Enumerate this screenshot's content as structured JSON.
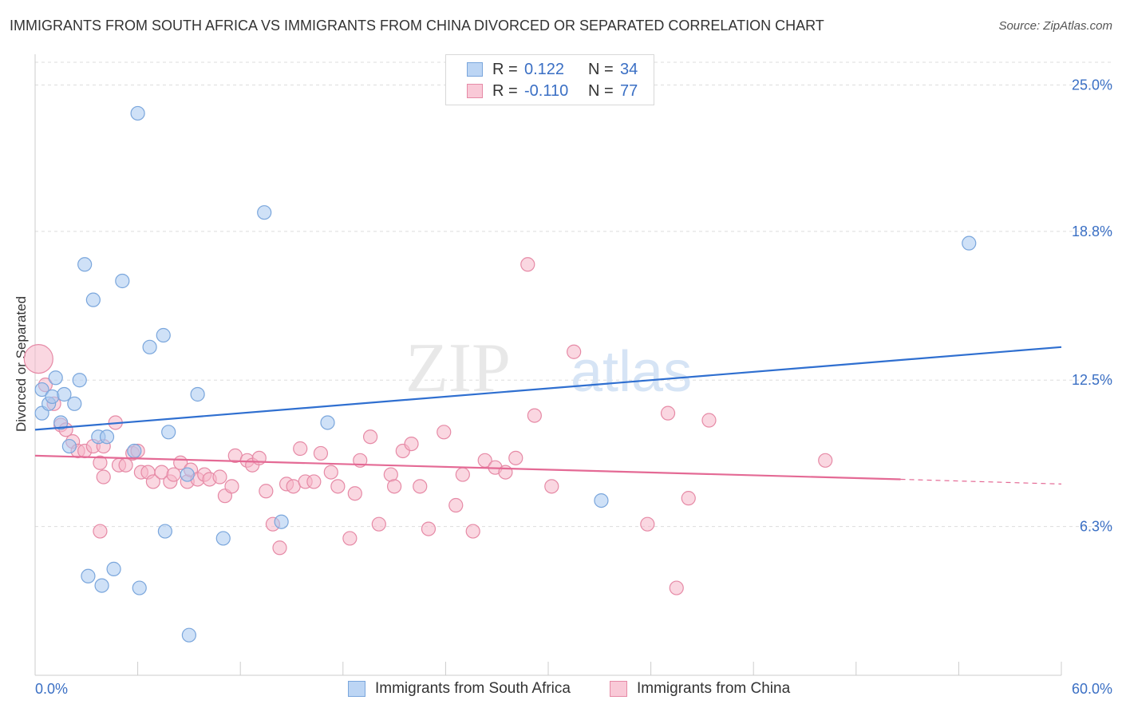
{
  "title": "IMMIGRANTS FROM SOUTH AFRICA VS IMMIGRANTS FROM CHINA DIVORCED OR SEPARATED CORRELATION CHART",
  "source": "Source: ZipAtlas.com",
  "watermark": {
    "zip": "ZIP",
    "atlas": "atlas"
  },
  "legend": {
    "rows": [
      {
        "r_label": "R =",
        "r_value": "0.122",
        "n_label": "N =",
        "n_value": "34"
      },
      {
        "r_label": "R =",
        "r_value": "-0.110",
        "n_label": "N =",
        "n_value": "77"
      }
    ]
  },
  "bottom_legend": {
    "south_africa": "Immigrants from South Africa",
    "china": "Immigrants from China"
  },
  "colors": {
    "blue_fill": "#a8c8f0",
    "blue_stroke": "#7aa6dc",
    "blue_line": "#2f6fd0",
    "pink_fill": "#f6b6c9",
    "pink_stroke": "#e68aa6",
    "pink_line": "#e46a95",
    "tick_label": "#3a6fc4",
    "grid": "#dddddd"
  },
  "chart_data": {
    "type": "scatter",
    "title": "IMMIGRANTS FROM SOUTH AFRICA VS IMMIGRANTS FROM CHINA DIVORCED OR SEPARATED CORRELATION CHART",
    "xlabel": "",
    "ylabel": "Divorced or Separated",
    "xlim": [
      0,
      60
    ],
    "ylim": [
      0,
      26.3
    ],
    "x_tick_labels": [
      "0.0%",
      "60.0%"
    ],
    "y_ticks": [
      6.3,
      12.5,
      18.8,
      25.0
    ],
    "y_tick_labels": [
      "6.3%",
      "12.5%",
      "18.8%",
      "25.0%"
    ],
    "grid": true,
    "legend_position": "top-center",
    "series": [
      {
        "name": "Immigrants from South Africa",
        "color": "#a8c8f0",
        "points": [
          [
            0.4,
            12.1
          ],
          [
            0.4,
            11.1
          ],
          [
            0.8,
            11.5
          ],
          [
            1.0,
            11.8
          ],
          [
            1.2,
            12.6
          ],
          [
            1.5,
            10.7
          ],
          [
            1.7,
            11.9
          ],
          [
            2.0,
            9.7
          ],
          [
            2.3,
            11.5
          ],
          [
            2.6,
            12.5
          ],
          [
            2.9,
            17.4
          ],
          [
            3.4,
            15.9
          ],
          [
            3.7,
            10.1
          ],
          [
            4.2,
            10.1
          ],
          [
            5.1,
            16.7
          ],
          [
            5.8,
            9.5
          ],
          [
            6.0,
            23.8
          ],
          [
            6.7,
            13.9
          ],
          [
            7.5,
            14.4
          ],
          [
            7.6,
            6.1
          ],
          [
            7.8,
            10.3
          ],
          [
            8.9,
            8.5
          ],
          [
            9.0,
            1.7
          ],
          [
            9.5,
            11.9
          ],
          [
            11.0,
            5.8
          ],
          [
            13.4,
            19.6
          ],
          [
            14.4,
            6.5
          ],
          [
            17.1,
            10.7
          ],
          [
            3.1,
            4.2
          ],
          [
            3.9,
            3.8
          ],
          [
            4.6,
            4.5
          ],
          [
            6.1,
            3.7
          ],
          [
            33.1,
            7.4
          ],
          [
            54.6,
            18.3
          ]
        ],
        "trendline": {
          "x": [
            0,
            60
          ],
          "y": [
            10.4,
            13.9
          ]
        }
      },
      {
        "name": "Immigrants from China",
        "color": "#f6b6c9",
        "points": [
          [
            0.2,
            13.4
          ],
          [
            0.6,
            12.3
          ],
          [
            1.1,
            11.5
          ],
          [
            1.5,
            10.6
          ],
          [
            1.8,
            10.4
          ],
          [
            2.2,
            9.9
          ],
          [
            2.5,
            9.5
          ],
          [
            2.9,
            9.5
          ],
          [
            3.4,
            9.7
          ],
          [
            3.8,
            9.0
          ],
          [
            4.0,
            9.7
          ],
          [
            4.7,
            10.7
          ],
          [
            4.9,
            8.9
          ],
          [
            5.3,
            8.9
          ],
          [
            5.7,
            9.4
          ],
          [
            6.0,
            9.5
          ],
          [
            6.2,
            8.6
          ],
          [
            6.6,
            8.6
          ],
          [
            6.9,
            8.2
          ],
          [
            7.4,
            8.6
          ],
          [
            7.9,
            8.2
          ],
          [
            8.1,
            8.5
          ],
          [
            8.5,
            9.0
          ],
          [
            8.9,
            8.2
          ],
          [
            9.1,
            8.7
          ],
          [
            9.5,
            8.3
          ],
          [
            9.9,
            8.5
          ],
          [
            10.2,
            8.3
          ],
          [
            10.8,
            8.4
          ],
          [
            11.1,
            7.6
          ],
          [
            11.5,
            8.0
          ],
          [
            11.7,
            9.3
          ],
          [
            12.4,
            9.1
          ],
          [
            12.7,
            8.9
          ],
          [
            13.1,
            9.2
          ],
          [
            13.5,
            7.8
          ],
          [
            13.9,
            6.4
          ],
          [
            14.3,
            5.4
          ],
          [
            14.7,
            8.1
          ],
          [
            15.1,
            8.0
          ],
          [
            15.5,
            9.6
          ],
          [
            15.8,
            8.2
          ],
          [
            16.3,
            8.2
          ],
          [
            16.7,
            9.4
          ],
          [
            17.3,
            8.6
          ],
          [
            17.7,
            8.0
          ],
          [
            18.4,
            5.8
          ],
          [
            18.7,
            7.7
          ],
          [
            19.0,
            9.1
          ],
          [
            19.6,
            10.1
          ],
          [
            20.1,
            6.4
          ],
          [
            20.8,
            8.5
          ],
          [
            21.0,
            8.0
          ],
          [
            21.5,
            9.5
          ],
          [
            22.0,
            9.8
          ],
          [
            22.5,
            8.0
          ],
          [
            23.0,
            6.2
          ],
          [
            23.9,
            10.3
          ],
          [
            24.6,
            7.2
          ],
          [
            25.0,
            8.5
          ],
          [
            25.6,
            6.1
          ],
          [
            26.3,
            9.1
          ],
          [
            26.9,
            8.8
          ],
          [
            27.5,
            8.6
          ],
          [
            28.1,
            9.2
          ],
          [
            28.8,
            17.4
          ],
          [
            29.2,
            11.0
          ],
          [
            30.2,
            8.0
          ],
          [
            31.5,
            13.7
          ],
          [
            35.8,
            6.4
          ],
          [
            37.0,
            11.1
          ],
          [
            37.5,
            3.7
          ],
          [
            38.2,
            7.5
          ],
          [
            39.4,
            10.8
          ],
          [
            46.2,
            9.1
          ],
          [
            3.8,
            6.1
          ],
          [
            4.0,
            8.4
          ]
        ],
        "trendline": {
          "x": [
            0,
            50.6
          ],
          "y": [
            9.3,
            8.3
          ]
        },
        "trendline_extension": {
          "x": [
            50.6,
            60
          ],
          "y": [
            8.3,
            8.1
          ]
        }
      }
    ]
  }
}
